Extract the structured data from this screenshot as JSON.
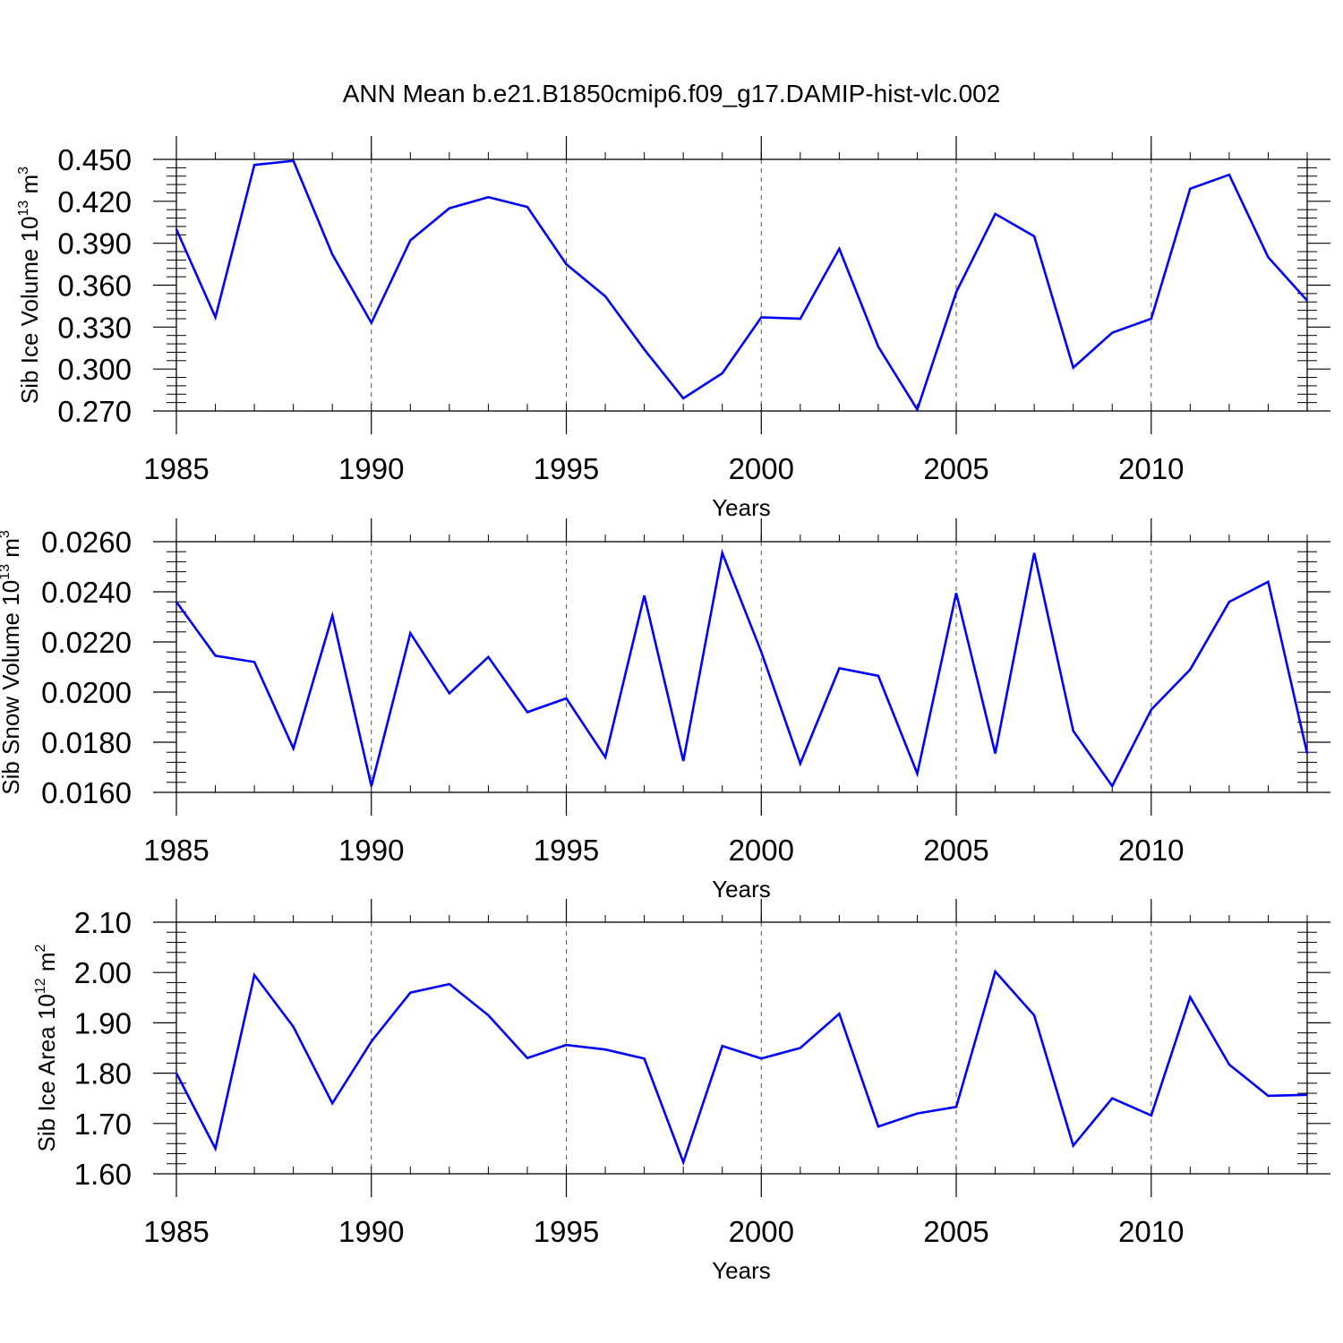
{
  "page": {
    "title": "ANN Mean b.e21.B1850cmip6.f09_g17.DAMIP-hist-vlc.002"
  },
  "colors": {
    "line": "#0000ff",
    "axis": "#000000",
    "grid": "#555555"
  },
  "chart_data": [
    {
      "type": "line",
      "xlabel": "Years",
      "ylabel": {
        "prefix": "Sib Ice Volume 10",
        "exponent": "13",
        "unit": " m",
        "unit_exponent": "3"
      },
      "xlim": [
        1985,
        2014
      ],
      "ylim": [
        0.27,
        0.45
      ],
      "xticks": [
        1985,
        1990,
        1995,
        2000,
        2005,
        2010
      ],
      "yticks": [
        "0.270",
        "0.300",
        "0.330",
        "0.360",
        "0.390",
        "0.420",
        "0.450"
      ],
      "grid": "vertical dashed at x ticks",
      "x": [
        1985,
        1986,
        1987,
        1988,
        1989,
        1990,
        1991,
        1992,
        1993,
        1994,
        1995,
        1996,
        1997,
        1998,
        1999,
        2000,
        2001,
        2002,
        2003,
        2004,
        2005,
        2006,
        2007,
        2008,
        2009,
        2010,
        2011,
        2012,
        2013,
        2014
      ],
      "series": [
        {
          "values": [
            0.4,
            0.337,
            0.446,
            0.449,
            0.382,
            0.333,
            0.392,
            0.415,
            0.423,
            0.416,
            0.375,
            0.352,
            0.314,
            0.279,
            0.297,
            0.337,
            0.336,
            0.386,
            0.316,
            0.271,
            0.355,
            0.411,
            0.395,
            0.301,
            0.326,
            0.336,
            0.429,
            0.439,
            0.38,
            0.349
          ]
        }
      ]
    },
    {
      "type": "line",
      "xlabel": "Years",
      "ylabel": {
        "prefix": "Sib Snow Volume 10",
        "exponent": "13",
        "unit": " m",
        "unit_exponent": "3"
      },
      "xlim": [
        1985,
        2014
      ],
      "ylim": [
        0.016,
        0.026
      ],
      "xticks": [
        1985,
        1990,
        1995,
        2000,
        2005,
        2010
      ],
      "yticks": [
        "0.0160",
        "0.0180",
        "0.0200",
        "0.0220",
        "0.0240",
        "0.0260"
      ],
      "grid": "vertical dashed at x ticks",
      "x": [
        1985,
        1986,
        1987,
        1988,
        1989,
        1990,
        1991,
        1992,
        1993,
        1994,
        1995,
        1996,
        1997,
        1998,
        1999,
        2000,
        2001,
        2002,
        2003,
        2004,
        2005,
        2006,
        2007,
        2008,
        2009,
        2010,
        2011,
        2012,
        2013,
        2014
      ],
      "series": [
        {
          "values": [
            0.0236,
            0.02145,
            0.0212,
            0.01775,
            0.02305,
            0.01625,
            0.02235,
            0.01995,
            0.0214,
            0.0192,
            0.01975,
            0.0174,
            0.02385,
            0.01725,
            0.02555,
            0.0216,
            0.01715,
            0.02095,
            0.02065,
            0.01675,
            0.02395,
            0.01755,
            0.02555,
            0.01845,
            0.01625,
            0.0193,
            0.0209,
            0.0236,
            0.0244,
            0.01755
          ]
        }
      ]
    },
    {
      "type": "line",
      "xlabel": "Years",
      "ylabel": {
        "prefix": "Sib Ice Area 10",
        "exponent": "12",
        "unit": " m",
        "unit_exponent": "2"
      },
      "xlim": [
        1985,
        2014
      ],
      "ylim": [
        1.6,
        2.1
      ],
      "xticks": [
        1985,
        1990,
        1995,
        2000,
        2005,
        2010
      ],
      "yticks": [
        "1.60",
        "1.70",
        "1.80",
        "1.90",
        "2.00",
        "2.10"
      ],
      "grid": "vertical dashed at x ticks",
      "x": [
        1985,
        1986,
        1987,
        1988,
        1989,
        1990,
        1991,
        1992,
        1993,
        1994,
        1995,
        1996,
        1997,
        1998,
        1999,
        2000,
        2001,
        2002,
        2003,
        2004,
        2005,
        2006,
        2007,
        2008,
        2009,
        2010,
        2011,
        2012,
        2013,
        2014
      ],
      "series": [
        {
          "values": [
            1.8,
            1.65,
            1.995,
            1.892,
            1.74,
            1.863,
            1.96,
            1.977,
            1.915,
            1.83,
            1.856,
            1.847,
            1.829,
            1.623,
            1.854,
            1.829,
            1.85,
            1.918,
            1.694,
            1.72,
            1.733,
            2.002,
            1.915,
            1.656,
            1.75,
            1.716,
            1.951,
            1.817,
            1.755,
            1.757
          ]
        }
      ]
    }
  ]
}
